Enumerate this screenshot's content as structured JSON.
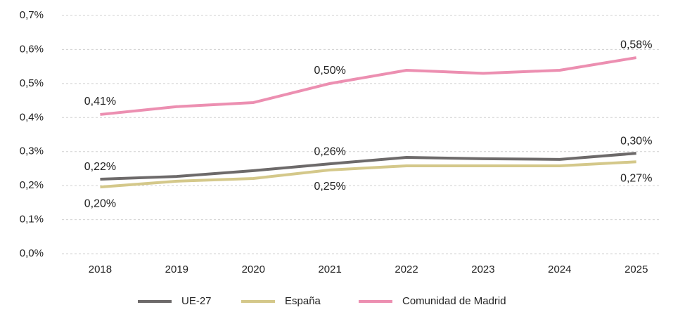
{
  "chart_data": {
    "type": "line",
    "categories": [
      "2018",
      "2019",
      "2020",
      "2021",
      "2022",
      "2023",
      "2024",
      "2025"
    ],
    "series": [
      {
        "name": "UE-27",
        "color": "#6d6a6a",
        "values": [
          0.219,
          0.227,
          0.244,
          0.264,
          0.283,
          0.279,
          0.277,
          0.295
        ],
        "value_labels": [
          "0,22%",
          null,
          null,
          "0,26%",
          null,
          null,
          null,
          "0,30%"
        ]
      },
      {
        "name": "España",
        "color": "#d4c88a",
        "values": [
          0.196,
          0.213,
          0.221,
          0.246,
          0.258,
          0.258,
          0.258,
          0.27
        ],
        "value_labels": [
          "0,20%",
          null,
          null,
          "0,25%",
          null,
          null,
          null,
          "0,27%"
        ]
      },
      {
        "name": "Comunidad de Madrid",
        "color": "#ec8fb1",
        "values": [
          0.409,
          0.432,
          0.444,
          0.5,
          0.539,
          0.53,
          0.539,
          0.576
        ],
        "value_labels": [
          "0,41%",
          null,
          null,
          "0,50%",
          null,
          null,
          null,
          "0,58%"
        ]
      }
    ],
    "ylim": [
      0,
      0.7
    ],
    "yticks": [
      {
        "value": 0,
        "label": "0,0%"
      },
      {
        "value": 0.1,
        "label": "0,1%"
      },
      {
        "value": 0.2,
        "label": "0,2%"
      },
      {
        "value": 0.3,
        "label": "0,3%"
      },
      {
        "value": 0.4,
        "label": "0,4%"
      },
      {
        "value": 0.5,
        "label": "0,5%"
      },
      {
        "value": 0.6,
        "label": "0,6%"
      },
      {
        "value": 0.7,
        "label": "0,7%"
      }
    ],
    "grid": true,
    "legend": "bottom"
  }
}
